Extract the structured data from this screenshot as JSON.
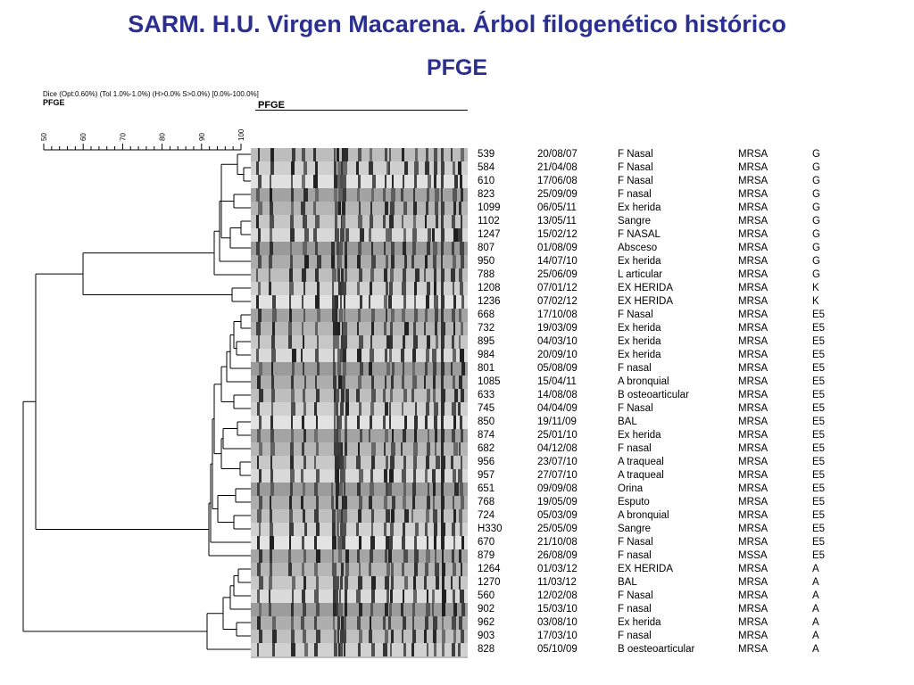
{
  "title": "SARM. H.U. Virgen Macarena. Árbol filogenético histórico",
  "subtitle": "PFGE",
  "settings_text": "Dice (Opt:0.60%) (Tol 1.0%-1.0%) (H>0.0% S>0.0%) [0.0%-100.0%]",
  "experiment_label_left": "PFGE",
  "experiment_label_gel": "PFGE",
  "scale": {
    "ticks": [
      "50",
      "60",
      "70",
      "80",
      "90",
      "100"
    ],
    "min": 50,
    "max": 100
  },
  "colors": {
    "title": "#2b2f8f",
    "text": "#000000"
  },
  "rows": [
    {
      "id": "539",
      "date": "20/08/07",
      "sample": "F Nasal",
      "type": "MRSA",
      "pattern": "G"
    },
    {
      "id": "584",
      "date": "21/04/08",
      "sample": "F Nasal",
      "type": "MRSA",
      "pattern": "G"
    },
    {
      "id": "610",
      "date": "17/06/08",
      "sample": "F Nasal",
      "type": "MRSA",
      "pattern": "G"
    },
    {
      "id": "823",
      "date": "25/09/09",
      "sample": "F nasal",
      "type": "MRSA",
      "pattern": "G"
    },
    {
      "id": "1099",
      "date": "06/05/11",
      "sample": "Ex herida",
      "type": "MRSA",
      "pattern": "G"
    },
    {
      "id": "1102",
      "date": "13/05/11",
      "sample": "Sangre",
      "type": "MRSA",
      "pattern": "G"
    },
    {
      "id": "1247",
      "date": "15/02/12",
      "sample": "F NASAL",
      "type": "MRSA",
      "pattern": "G"
    },
    {
      "id": "807",
      "date": "01/08/09",
      "sample": "Absceso",
      "type": "MRSA",
      "pattern": "G"
    },
    {
      "id": "950",
      "date": "14/07/10",
      "sample": "Ex herida",
      "type": "MRSA",
      "pattern": "G"
    },
    {
      "id": "788",
      "date": "25/06/09",
      "sample": "L articular",
      "type": "MRSA",
      "pattern": "G"
    },
    {
      "id": "1208",
      "date": "07/01/12",
      "sample": "EX HERIDA",
      "type": "MRSA",
      "pattern": "K"
    },
    {
      "id": "1236",
      "date": "07/02/12",
      "sample": "EX HERIDA",
      "type": "MRSA",
      "pattern": "K"
    },
    {
      "id": "668",
      "date": "17/10/08",
      "sample": "F Nasal",
      "type": "MRSA",
      "pattern": "E5"
    },
    {
      "id": "732",
      "date": "19/03/09",
      "sample": "Ex herida",
      "type": "MRSA",
      "pattern": "E5"
    },
    {
      "id": "895",
      "date": "04/03/10",
      "sample": "Ex herida",
      "type": "MRSA",
      "pattern": "E5"
    },
    {
      "id": "984",
      "date": "20/09/10",
      "sample": "Ex herida",
      "type": "MRSA",
      "pattern": "E5"
    },
    {
      "id": "801",
      "date": "05/08/09",
      "sample": "F nasal",
      "type": "MRSA",
      "pattern": "E5"
    },
    {
      "id": "1085",
      "date": "15/04/11",
      "sample": "A bronquial",
      "type": "MRSA",
      "pattern": "E5"
    },
    {
      "id": "633",
      "date": "14/08/08",
      "sample": "B osteoarticular",
      "type": "MRSA",
      "pattern": "E5"
    },
    {
      "id": "745",
      "date": "04/04/09",
      "sample": "F Nasal",
      "type": "MRSA",
      "pattern": "E5"
    },
    {
      "id": "850",
      "date": "19/11/09",
      "sample": "BAL",
      "type": "MRSA",
      "pattern": "E5"
    },
    {
      "id": "874",
      "date": "25/01/10",
      "sample": "Ex herida",
      "type": "MRSA",
      "pattern": "E5"
    },
    {
      "id": "682",
      "date": "04/12/08",
      "sample": "F nasal",
      "type": "MRSA",
      "pattern": "E5"
    },
    {
      "id": "956",
      "date": "23/07/10",
      "sample": "A traqueal",
      "type": "MRSA",
      "pattern": "E5"
    },
    {
      "id": "957",
      "date": "27/07/10",
      "sample": "A traqueal",
      "type": "MRSA",
      "pattern": "E5"
    },
    {
      "id": "651",
      "date": "09/09/08",
      "sample": "Orina",
      "type": "MRSA",
      "pattern": "E5"
    },
    {
      "id": "768",
      "date": "19/05/09",
      "sample": "Esputo",
      "type": "MRSA",
      "pattern": "E5"
    },
    {
      "id": "724",
      "date": "05/03/09",
      "sample": "A bronquial",
      "type": "MRSA",
      "pattern": "E5"
    },
    {
      "id": "H330",
      "date": "25/05/09",
      "sample": "Sangre",
      "type": "MRSA",
      "pattern": "E5"
    },
    {
      "id": "670",
      "date": "21/10/08",
      "sample": "F Nasal",
      "type": "MRSA",
      "pattern": "E5"
    },
    {
      "id": "879",
      "date": "26/08/09",
      "sample": "F nasal",
      "type": "MSSA",
      "pattern": "E5"
    },
    {
      "id": "1264",
      "date": "01/03/12",
      "sample": "EX HERIDA",
      "type": "MRSA",
      "pattern": "A"
    },
    {
      "id": "1270",
      "date": "11/03/12",
      "sample": "BAL",
      "type": "MRSA",
      "pattern": "A"
    },
    {
      "id": "560",
      "date": "12/02/08",
      "sample": "F Nasal",
      "type": "MRSA",
      "pattern": "A"
    },
    {
      "id": "902",
      "date": "15/03/10",
      "sample": "F nasal",
      "type": "MRSA",
      "pattern": "A"
    },
    {
      "id": "962",
      "date": "03/08/10",
      "sample": "Ex herida",
      "type": "MRSA",
      "pattern": "A"
    },
    {
      "id": "903",
      "date": "17/03/10",
      "sample": "F nasal",
      "type": "MRSA",
      "pattern": "A"
    },
    {
      "id": "828",
      "date": "05/10/09",
      "sample": "B oesteoarticular",
      "type": "MRSA",
      "pattern": "A"
    }
  ]
}
